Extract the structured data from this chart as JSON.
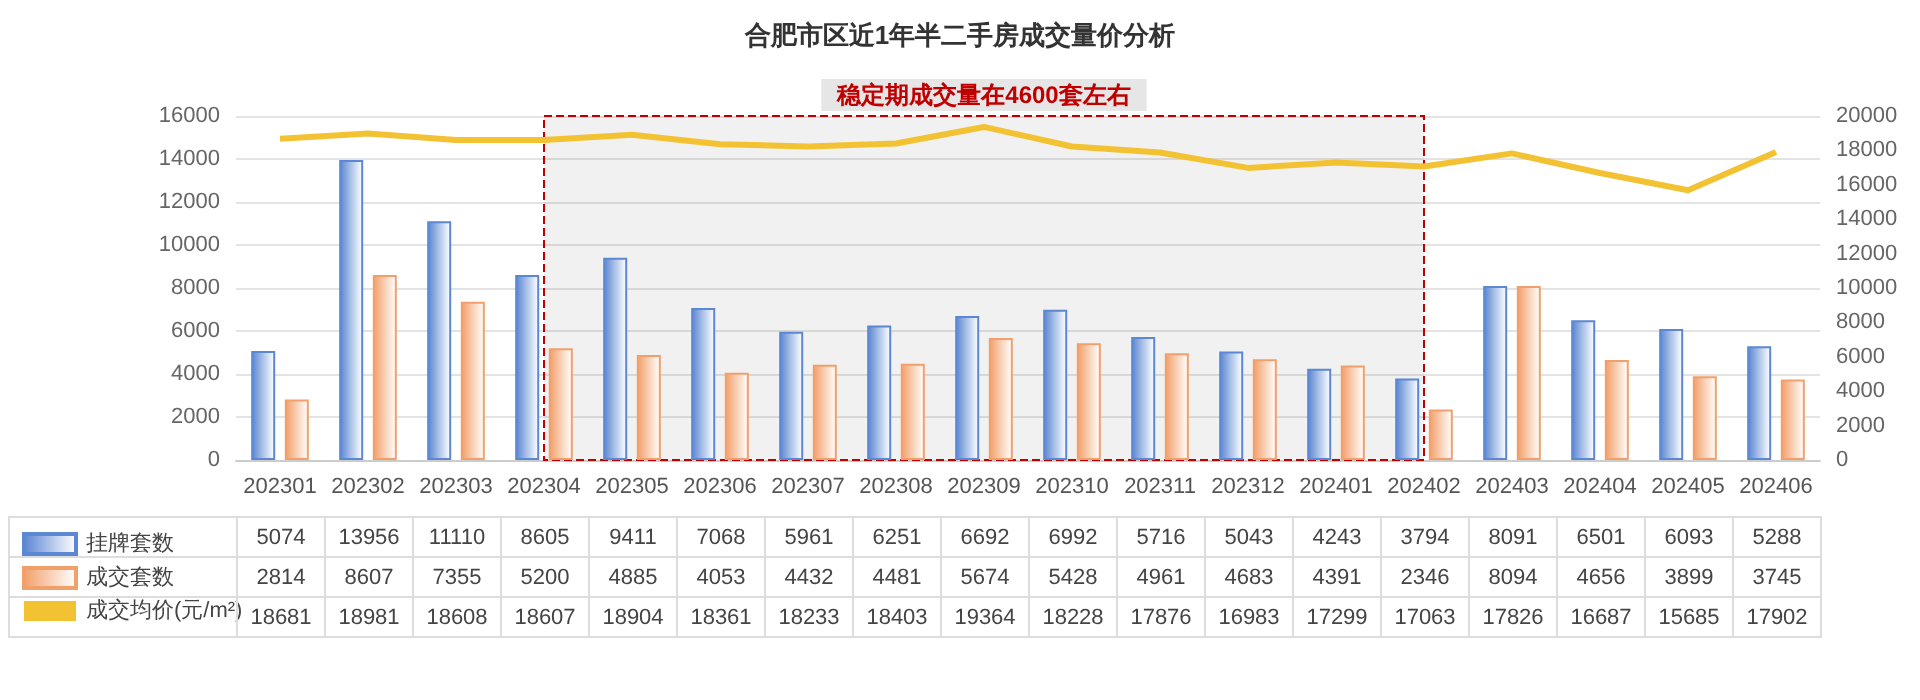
{
  "chart_data": {
    "type": "bar",
    "title": "合肥市区近1年半二手房成交量价分析",
    "categories": [
      "202301",
      "202302",
      "202303",
      "202304",
      "202305",
      "202306",
      "202307",
      "202308",
      "202309",
      "202310",
      "202311",
      "202312",
      "202401",
      "202402",
      "202403",
      "202404",
      "202405",
      "202406"
    ],
    "series": [
      {
        "name": "挂牌套数",
        "color": "#5b87d3",
        "values": [
          5074,
          13956,
          11110,
          8605,
          9411,
          7068,
          5961,
          6251,
          6692,
          6992,
          5716,
          5043,
          4243,
          3794,
          8091,
          6501,
          6093,
          5288
        ]
      },
      {
        "name": "成交套数",
        "color": "#f2a06b",
        "values": [
          2814,
          8607,
          7355,
          5200,
          4885,
          4053,
          4432,
          4481,
          5674,
          5428,
          4961,
          4683,
          4391,
          2346,
          8094,
          4656,
          3899,
          3745
        ]
      },
      {
        "name": "成交均价(元/m²)",
        "type": "line",
        "axis": "y2",
        "color": "#f3c233",
        "values": [
          18681,
          18981,
          18608,
          18607,
          18904,
          18361,
          18233,
          18403,
          19364,
          18228,
          17876,
          16983,
          17299,
          17063,
          17826,
          16687,
          15685,
          17902
        ]
      }
    ],
    "ylim": [
      0,
      16000
    ],
    "yticks": [
      0,
      2000,
      4000,
      6000,
      8000,
      10000,
      12000,
      14000,
      16000
    ],
    "y2lim": [
      0,
      20000
    ],
    "y2ticks": [
      0,
      2000,
      4000,
      6000,
      8000,
      10000,
      12000,
      14000,
      16000,
      18000,
      20000
    ],
    "bands": [
      {
        "axis": "x",
        "from": "202304",
        "to": "202402",
        "label": "稳定期成交量在4600套左右",
        "color": "#c00000"
      }
    ],
    "grid": "y",
    "legend": "bottom left",
    "data_labels": true,
    "marker": "none"
  }
}
